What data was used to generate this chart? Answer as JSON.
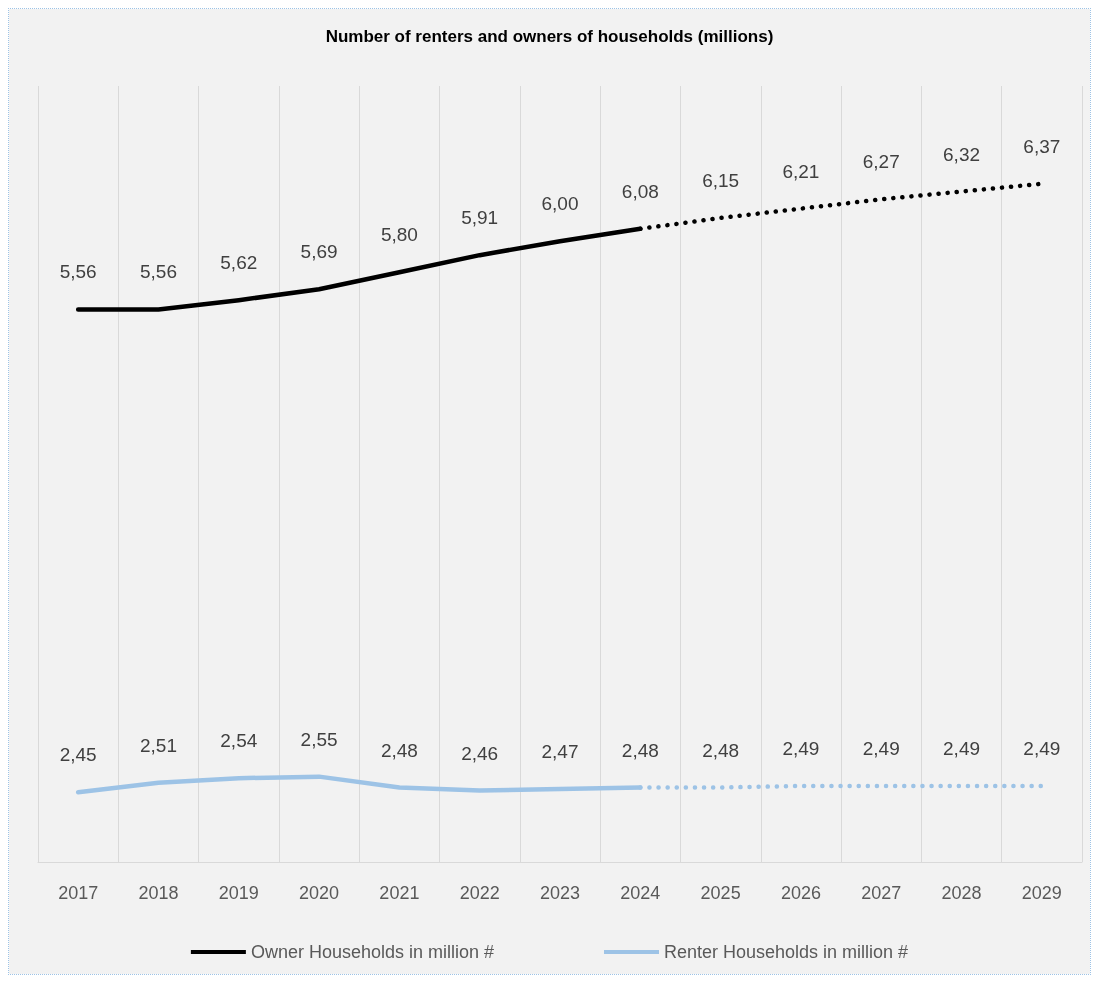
{
  "chart_data": {
    "type": "line",
    "title": "Number of renters and owners of households (millions)",
    "categories": [
      "2017",
      "2018",
      "2019",
      "2020",
      "2021",
      "2022",
      "2023",
      "2024",
      "2025",
      "2026",
      "2027",
      "2028",
      "2029"
    ],
    "grid": "x",
    "legend": "bottom",
    "marker": "none",
    "tick_labels": "x",
    "series": [
      {
        "name": "Owner Households in million #",
        "color": "#000000",
        "line_style": "solid",
        "values": [
          5.56,
          5.56,
          5.62,
          5.69,
          5.8,
          5.91,
          6.0,
          6.08,
          null,
          null,
          null,
          null,
          null
        ],
        "value_labels": [
          "5,56",
          "5,56",
          "5,62",
          "5,69",
          "5,80",
          "5,91",
          "6,00",
          "6,08",
          null,
          null,
          null,
          null,
          null
        ]
      },
      {
        "name": "Renter Households in million #",
        "color": "#9dc3e6",
        "line_style": "solid",
        "values": [
          2.45,
          2.51,
          2.54,
          2.55,
          2.48,
          2.46,
          2.47,
          2.48,
          null,
          null,
          null,
          null,
          null
        ],
        "value_labels": [
          "2,45",
          "2,51",
          "2,54",
          "2,55",
          "2,48",
          "2,46",
          "2,47",
          "2,48",
          null,
          null,
          null,
          null,
          null
        ]
      },
      {
        "color": "#000000",
        "line_style": "dotted",
        "values": [
          null,
          null,
          null,
          null,
          null,
          null,
          null,
          6.08,
          6.15,
          6.21,
          6.27,
          6.32,
          6.37
        ],
        "value_labels": [
          null,
          null,
          null,
          null,
          null,
          null,
          null,
          null,
          "6,15",
          "6,21",
          "6,27",
          "6,32",
          "6,37"
        ]
      },
      {
        "color": "#9dc3e6",
        "line_style": "dotted",
        "values": [
          null,
          null,
          null,
          null,
          null,
          null,
          null,
          2.48,
          2.48,
          2.49,
          2.49,
          2.49,
          2.49
        ],
        "value_labels": [
          null,
          null,
          null,
          null,
          null,
          null,
          null,
          null,
          "2,48",
          "2,49",
          "2,49",
          "2,49",
          "2,49"
        ]
      }
    ]
  }
}
